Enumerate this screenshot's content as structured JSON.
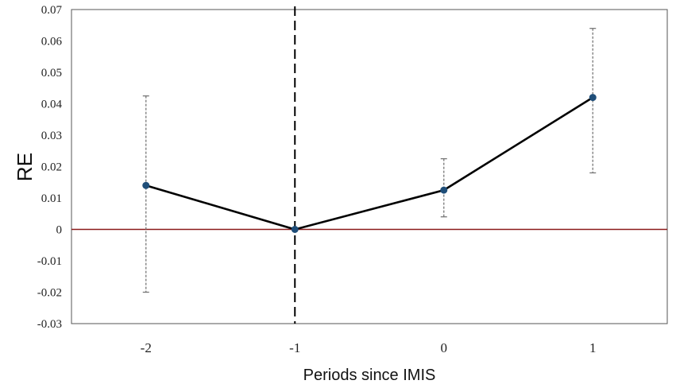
{
  "chart_data": {
    "type": "line",
    "title": "",
    "xlabel": "Periods since IMIS",
    "ylabel": "RE",
    "x": [
      -2,
      -1,
      0,
      1
    ],
    "x_tick_labels": [
      "-2",
      "-1",
      "0",
      "1"
    ],
    "y_tick_labels": [
      "0.07",
      "0.06",
      "0.05",
      "0.04",
      "0.03",
      "0.02",
      "0.01",
      "0",
      "-0.01",
      "-0.02",
      "-0.03"
    ],
    "xlim": [
      -2.5,
      1.5
    ],
    "ylim": [
      -0.03,
      0.07
    ],
    "grid": false,
    "series": [
      {
        "values": [
          0.014,
          0.0,
          0.0125,
          0.042
        ],
        "error_low": [
          -0.02,
          null,
          0.004,
          0.018
        ],
        "error_high": [
          0.0425,
          null,
          0.0225,
          0.064
        ]
      }
    ],
    "reference_lines": {
      "horizontal_y": 0,
      "vertical_x": -1
    },
    "colors": {
      "line": "#000000",
      "marker": "#1f4e79",
      "error_bar": "#777777",
      "zero_line": "#8b1a1a",
      "vertical_line": "#000000",
      "frame": "#555555"
    }
  }
}
